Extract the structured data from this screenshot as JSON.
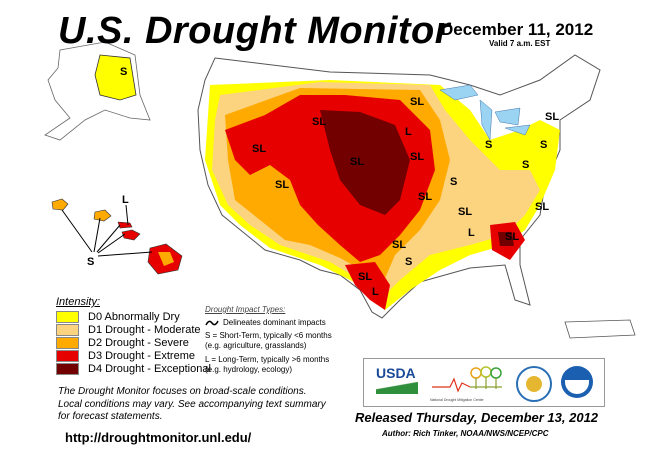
{
  "header": {
    "title": "U.S. Drought Monitor",
    "date": "December 11, 2012",
    "valid": "Valid 7 a.m. EST"
  },
  "map": {
    "labels": {
      "short": "S",
      "short_long": "SL",
      "long": "L"
    }
  },
  "legend": {
    "heading": "Intensity:",
    "items": [
      {
        "label": "D0 Abnormally Dry",
        "color": "#ffff00"
      },
      {
        "label": "D1 Drought - Moderate",
        "color": "#fcd37f"
      },
      {
        "label": "D2 Drought - Severe",
        "color": "#ffaa00"
      },
      {
        "label": "D3 Drought - Extreme",
        "color": "#e60000"
      },
      {
        "label": "D4 Drought - Exceptional",
        "color": "#730000"
      }
    ]
  },
  "impact_types": {
    "heading": "Drought Impact Types:",
    "delineates": "Delineates dominant impacts",
    "short_term": "S = Short-Term, typically <6 months",
    "short_term_eg": "(e.g. agriculture, grasslands)",
    "long_term": "L = Long-Term, typically >6 months",
    "long_term_eg": "(e.g. hydrology, ecology)"
  },
  "note": {
    "line1": "The Drought Monitor focuses on broad-scale conditions.",
    "line2": "Local conditions may vary. See accompanying text summary",
    "line3": "for forecast statements."
  },
  "url": "http://droughtmonitor.unl.edu/",
  "logos": {
    "usda": "USDA",
    "ndmc": "National Drought Mitigation Center"
  },
  "footer": {
    "released": "Released Thursday, December 13, 2012",
    "author": "Author: Rich Tinker, NOAA/NWS/NCEP/CPC"
  }
}
